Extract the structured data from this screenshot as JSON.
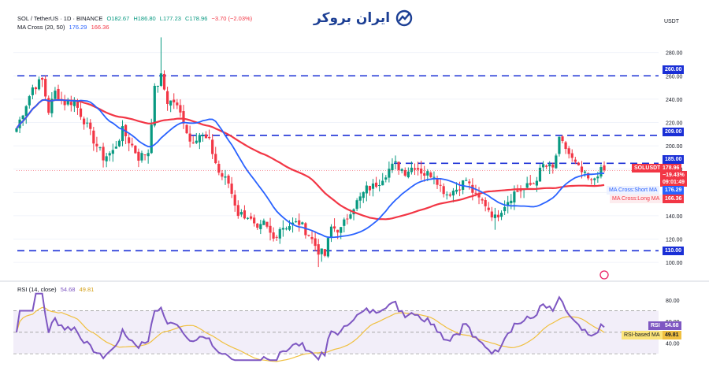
{
  "header": {
    "pair": "SOL / TetherUS · 1D · BINANCE",
    "o": "O182.67",
    "h": "H186.80",
    "l": "L177.23",
    "c": "C178.96",
    "change": "−3.70 (−2.03%)",
    "ma_label": "MA Cross (20, 50)",
    "ma_short_val": "176.29",
    "ma_long_val": "166.36",
    "rsi_label": "RSI (14, close)",
    "rsi_val": "54.68",
    "rsi_ma_val": "49.81"
  },
  "logo_text": "ایران بروکر",
  "currency": "USDT",
  "tags": {
    "r260": "260.00",
    "r209": "209.00",
    "r185": "185.00",
    "r110": "110.00",
    "symbol": "SOLUSDT",
    "price": "178.96",
    "pct": "−19.43%",
    "countdown": "09:01:49",
    "short_label": "MA Cross:Short MA",
    "short_val": "176.29",
    "long_label": "MA Cross:Long MA",
    "long_val": "166.36",
    "rsi_label": "RSI",
    "rsi_val": "54.68",
    "rsima_label": "RSI-based MA",
    "rsima_val": "49.81"
  },
  "colors": {
    "up": "#089981",
    "down": "#f23645",
    "short_ma": "#2962ff",
    "long_ma": "#f23645",
    "level": "#1a2fd6",
    "rsi": "#7e57c2",
    "rsi_ma": "#f0c040"
  },
  "chart_data": [
    {
      "type": "candlestick",
      "title": "SOL / TetherUS · 1D · BINANCE",
      "y_ticks": [
        100,
        120,
        140,
        160,
        180,
        200,
        220,
        240,
        260,
        280
      ],
      "ylim": [
        92,
        298
      ],
      "horizontal_levels": [
        260,
        209,
        185,
        110
      ],
      "anchors": [
        [
          0,
          215
        ],
        [
          5,
          250
        ],
        [
          8,
          256
        ],
        [
          10,
          230
        ],
        [
          12,
          246
        ],
        [
          15,
          237
        ],
        [
          18,
          238
        ],
        [
          21,
          222
        ],
        [
          24,
          205
        ],
        [
          27,
          190
        ],
        [
          30,
          195
        ],
        [
          33,
          213
        ],
        [
          36,
          200
        ],
        [
          38,
          190
        ],
        [
          41,
          195
        ],
        [
          43,
          248
        ],
        [
          45,
          259
        ],
        [
          47,
          238
        ],
        [
          49,
          238
        ],
        [
          52,
          222
        ],
        [
          54,
          204
        ],
        [
          57,
          210
        ],
        [
          60,
          203
        ],
        [
          63,
          177
        ],
        [
          66,
          168
        ],
        [
          69,
          142
        ],
        [
          72,
          140
        ],
        [
          75,
          126
        ],
        [
          77,
          133
        ],
        [
          80,
          120
        ],
        [
          82,
          130
        ],
        [
          85,
          132
        ],
        [
          88,
          134
        ],
        [
          91,
          124
        ],
        [
          94,
          110
        ],
        [
          96,
          106
        ],
        [
          98,
          130
        ],
        [
          101,
          128
        ],
        [
          104,
          145
        ],
        [
          107,
          155
        ],
        [
          109,
          163
        ],
        [
          111,
          165
        ],
        [
          113,
          170
        ],
        [
          116,
          180
        ],
        [
          118,
          184
        ],
        [
          121,
          178
        ],
        [
          124,
          183
        ],
        [
          127,
          176
        ],
        [
          130,
          176
        ],
        [
          132,
          165
        ],
        [
          134,
          159
        ],
        [
          137,
          163
        ],
        [
          140,
          171
        ],
        [
          143,
          156
        ],
        [
          146,
          150
        ],
        [
          149,
          138
        ],
        [
          152,
          150
        ],
        [
          155,
          160
        ],
        [
          158,
          163
        ],
        [
          161,
          168
        ],
        [
          164,
          183
        ],
        [
          167,
          180
        ],
        [
          169,
          204
        ],
        [
          171,
          198
        ],
        [
          173,
          188
        ],
        [
          175,
          180
        ],
        [
          177,
          174
        ],
        [
          179,
          168
        ],
        [
          181,
          177
        ],
        [
          183,
          179
        ]
      ],
      "ma_short_period": 20,
      "ma_long_period": 50,
      "last_close": 178.96,
      "ma_short_last": 176.29,
      "ma_long_last": 166.36
    },
    {
      "type": "line",
      "title": "RSI (14, close)",
      "y_ticks": [
        40,
        60,
        80
      ],
      "ylim": [
        22,
        88
      ],
      "band": [
        30,
        70
      ],
      "rsi_period": 14,
      "rsi_ma_period": 14,
      "last_rsi": 54.68,
      "last_rsi_ma": 49.81
    }
  ]
}
